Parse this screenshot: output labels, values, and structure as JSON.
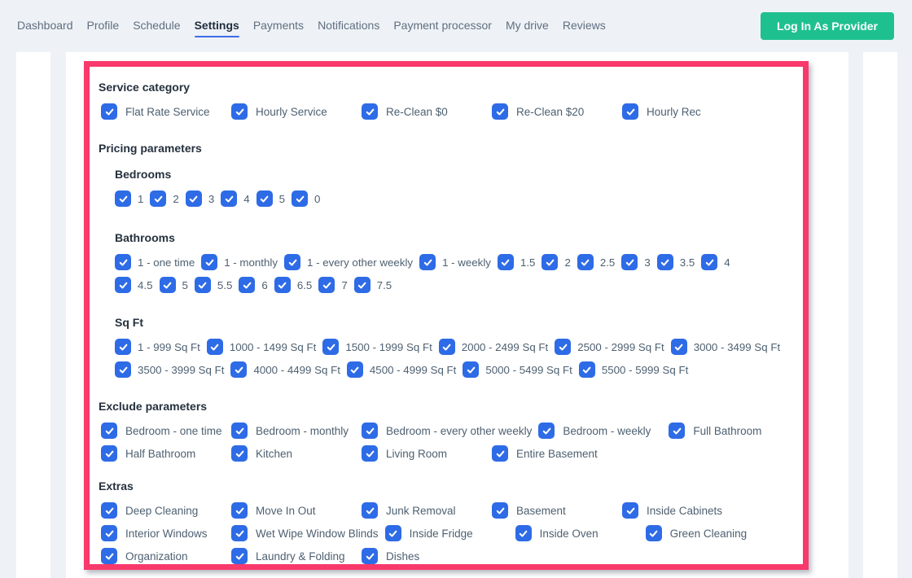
{
  "nav": {
    "items": [
      {
        "label": "Dashboard",
        "active": false
      },
      {
        "label": "Profile",
        "active": false
      },
      {
        "label": "Schedule",
        "active": false
      },
      {
        "label": "Settings",
        "active": true
      },
      {
        "label": "Payments",
        "active": false
      },
      {
        "label": "Notifications",
        "active": false
      },
      {
        "label": "Payment processor",
        "active": false
      },
      {
        "label": "My drive",
        "active": false
      },
      {
        "label": "Reviews",
        "active": false
      }
    ],
    "login_button_label": "Log In As Provider"
  },
  "settings": {
    "all_checked": true,
    "sections": [
      {
        "title": "Service category",
        "rows": [
          [
            "Flat Rate Service",
            "Hourly Service",
            "Re-Clean $0",
            "Re-Clean $20",
            "Hourly Rec"
          ]
        ]
      },
      {
        "title": "Pricing parameters",
        "subsections": [
          {
            "title": "Bedrooms",
            "rows": [
              [
                "1",
                "2",
                "3",
                "4",
                "5",
                "0"
              ]
            ]
          },
          {
            "title": "Bathrooms",
            "rows": [
              [
                "1 - one time",
                "1 - monthly",
                "1 - every other weekly",
                "1 - weekly",
                "1.5",
                "2",
                "2.5",
                "3",
                "3.5",
                "4"
              ],
              [
                "4.5",
                "5",
                "5.5",
                "6",
                "6.5",
                "7",
                "7.5"
              ]
            ]
          },
          {
            "title": "Sq Ft",
            "rows": [
              [
                "1 - 999 Sq Ft",
                "1000 - 1499 Sq Ft",
                "1500 - 1999 Sq Ft",
                "2000 - 2499 Sq Ft",
                "2500 - 2999 Sq Ft",
                "3000 - 3499 Sq Ft"
              ],
              [
                "3500 - 3999 Sq Ft",
                "4000 - 4499 Sq Ft",
                "4500 - 4999 Sq Ft",
                "5000 - 5499 Sq Ft",
                "5500 - 5999 Sq Ft"
              ]
            ]
          }
        ]
      },
      {
        "title": "Exclude parameters",
        "rows": [
          [
            "Bedroom - one time",
            "Bedroom - monthly",
            "Bedroom - every other weekly",
            "Bedroom - weekly",
            "Full Bathroom"
          ],
          [
            "Half Bathroom",
            "Kitchen",
            "Living Room",
            "Entire Basement"
          ]
        ]
      },
      {
        "title": "Extras",
        "rows": [
          [
            "Deep Cleaning",
            "Move In Out",
            "Junk Removal",
            "Basement",
            "Inside Cabinets"
          ],
          [
            "Interior Windows",
            "Wet Wipe Window Blinds",
            "Inside Fridge",
            "Inside Oven",
            "Green Cleaning"
          ],
          [
            "Organization",
            "Laundry & Folding",
            "Dishes"
          ]
        ]
      }
    ]
  },
  "colors": {
    "checkbox_blue": "#2e6be6",
    "highlight_border_pink": "#f9386b",
    "login_button_green": "#1fc090",
    "nav_active_underline": "#3c6de8"
  }
}
